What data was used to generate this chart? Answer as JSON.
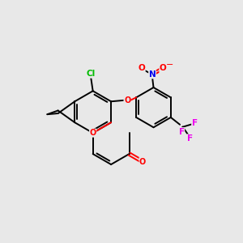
{
  "bg_color": "#e8e8e8",
  "bond_color": "#000000",
  "atom_colors": {
    "O": "#ff0000",
    "Cl": "#00bb00",
    "N": "#0000ee",
    "F": "#ee00ee",
    "C": "#000000"
  },
  "figsize": [
    3.0,
    3.0
  ],
  "dpi": 100,
  "lw": 1.4,
  "inner_off": 0.1,
  "inner_shorten": 0.13
}
